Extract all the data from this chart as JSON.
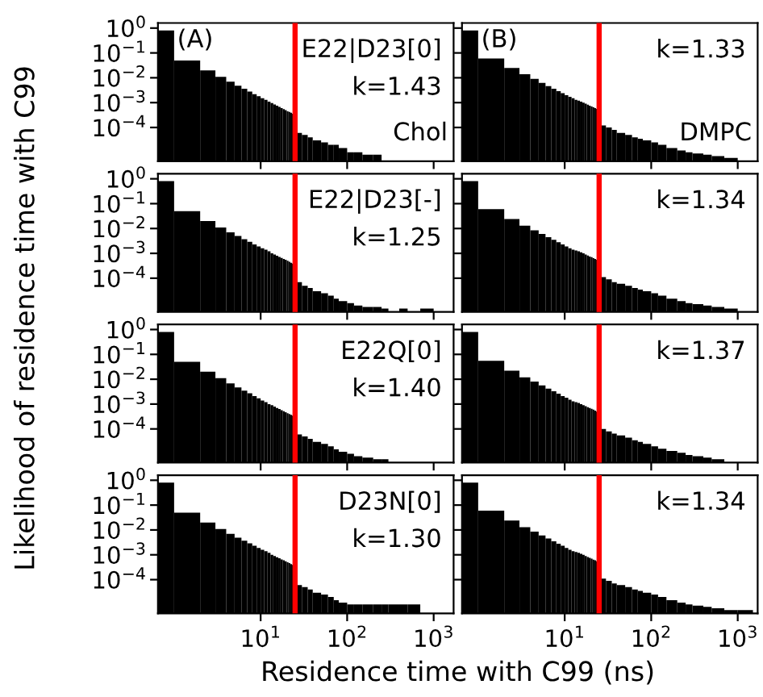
{
  "chart_data": [
    {
      "type": "histogram",
      "title": "(A)",
      "subtitle": "Chol",
      "annotations": [
        "E22|D23[0]",
        "k=1.43"
      ],
      "ylabel": "Likelihood of residence time with C99",
      "color": "#000000",
      "log": "xy",
      "tick_labels": "y",
      "xlim": [
        0.65,
        1700
      ],
      "ylim": [
        4.4e-06,
        1.6
      ],
      "xticks": [
        {
          "value": 10,
          "label": null
        },
        {
          "value": 100,
          "label": null
        },
        {
          "value": 1000,
          "label": null
        }
      ],
      "yticks": [
        {
          "value": 0.0001,
          "label": "10$^{−4}$"
        },
        {
          "value": 0.001,
          "label": "10$^{−3}$"
        },
        {
          "value": 0.01,
          "label": "10$^{−2}$"
        },
        {
          "value": 0.1,
          "label": "10$^{−1}$"
        },
        {
          "value": 1,
          "label": "10$^{0}$"
        }
      ],
      "ref_lines": [
        {
          "axis": "x",
          "value": 25,
          "color": "#ff0000"
        }
      ],
      "bins": [
        0.65,
        1,
        2,
        3,
        4,
        5,
        6,
        7,
        8,
        9,
        10,
        11,
        12,
        13,
        14,
        15,
        16,
        17,
        18,
        19,
        20,
        21,
        22,
        23,
        25,
        30,
        35,
        40,
        50,
        60,
        70,
        80,
        100,
        120,
        150,
        200,
        250
      ],
      "values": [
        0.8,
        0.05,
        0.02,
        0.011,
        0.0069,
        0.0048,
        0.0036,
        0.0028,
        0.0022,
        0.0018,
        0.0015,
        0.0013,
        0.0011,
        0.00096,
        0.00085,
        0.00075,
        0.00067,
        0.0006,
        0.00055,
        0.0005,
        0.00045,
        0.00042,
        0.00039,
        0.00036,
        6e-05,
        5e-05,
        4e-05,
        3e-05,
        2.5e-05,
        2e-05,
        2e-05,
        1.5e-05,
        1e-05,
        1e-05,
        8e-06,
        8e-06
      ]
    },
    {
      "type": "histogram",
      "title": "(B)",
      "subtitle": "DMPC",
      "annotations": [
        "k=1.33"
      ],
      "color": "#000000",
      "log": "xy",
      "tick_labels": false,
      "xlim": [
        0.65,
        1700
      ],
      "ylim": [
        4.4e-06,
        1.6
      ],
      "xticks": [
        {
          "value": 10,
          "label": null
        },
        {
          "value": 100,
          "label": null
        },
        {
          "value": 1000,
          "label": null
        }
      ],
      "yticks": [
        {
          "value": 0.0001,
          "label": null
        },
        {
          "value": 0.001,
          "label": null
        },
        {
          "value": 0.01,
          "label": null
        },
        {
          "value": 0.1,
          "label": null
        },
        {
          "value": 1,
          "label": null
        }
      ],
      "ref_lines": [
        {
          "axis": "x",
          "value": 25,
          "color": "#ff0000"
        }
      ],
      "bins": [
        0.65,
        1,
        2,
        3,
        4,
        5,
        6,
        7,
        8,
        9,
        10,
        11,
        12,
        13,
        14,
        15,
        16,
        17,
        18,
        19,
        20,
        21,
        22,
        23,
        25,
        30,
        35,
        40,
        50,
        60,
        70,
        80,
        100,
        120,
        150,
        200,
        250,
        300,
        400,
        500,
        700,
        1000
      ],
      "values": [
        0.8,
        0.06,
        0.025,
        0.014,
        0.009,
        0.0062,
        0.0046,
        0.0036,
        0.0029,
        0.0024,
        0.002,
        0.0017,
        0.0015,
        0.0013,
        0.0012,
        0.0011,
        0.001,
        0.0009,
        0.00082,
        0.00075,
        0.0007,
        0.00065,
        0.0006,
        0.00056,
        0.00012,
        0.0001,
        8e-05,
        6e-05,
        5e-05,
        4e-05,
        3.5e-05,
        3e-05,
        2.5e-05,
        2e-05,
        1.5e-05,
        1.2e-05,
        1e-05,
        9e-06,
        8e-06,
        7e-06,
        6e-06
      ]
    },
    {
      "type": "histogram",
      "annotations": [
        "E22|D23[-]",
        "k=1.25"
      ],
      "color": "#000000",
      "log": "xy",
      "tick_labels": "y",
      "xlim": [
        0.65,
        1700
      ],
      "ylim": [
        4.4e-06,
        1.6
      ],
      "xticks": [
        {
          "value": 10,
          "label": null
        },
        {
          "value": 100,
          "label": null
        },
        {
          "value": 1000,
          "label": null
        }
      ],
      "yticks": [
        {
          "value": 0.0001,
          "label": "10$^{−4}$"
        },
        {
          "value": 0.001,
          "label": "10$^{−3}$"
        },
        {
          "value": 0.01,
          "label": "10$^{−2}$"
        },
        {
          "value": 0.1,
          "label": "10$^{−1}$"
        },
        {
          "value": 1,
          "label": "10$^{0}$"
        }
      ],
      "ref_lines": [
        {
          "axis": "x",
          "value": 25,
          "color": "#ff0000"
        }
      ],
      "bins": [
        0.65,
        1,
        2,
        3,
        4,
        5,
        6,
        7,
        8,
        9,
        10,
        11,
        12,
        13,
        14,
        15,
        16,
        17,
        18,
        19,
        20,
        21,
        22,
        23,
        25,
        30,
        35,
        40,
        50,
        60,
        70,
        80,
        100,
        120,
        150,
        200,
        250,
        300,
        400,
        500,
        700,
        1000
      ],
      "values": [
        0.8,
        0.05,
        0.02,
        0.011,
        0.007,
        0.005,
        0.0037,
        0.0029,
        0.0023,
        0.0019,
        0.0016,
        0.0014,
        0.0012,
        0.001,
        0.0009,
        0.0008,
        0.00072,
        0.00065,
        0.0006,
        0.00055,
        0.0005,
        0.00046,
        0.00042,
        0.00039,
        7e-05,
        5e-05,
        4e-05,
        3e-05,
        2.5e-05,
        2e-05,
        1.5e-05,
        1.2e-05,
        1e-05,
        8e-06,
        7e-06,
        7e-06,
        6e-06,
        null,
        6e-06,
        null,
        6e-06
      ]
    },
    {
      "type": "histogram",
      "annotations": [
        "k=1.34"
      ],
      "color": "#000000",
      "log": "xy",
      "tick_labels": false,
      "xlim": [
        0.65,
        1700
      ],
      "ylim": [
        4.4e-06,
        1.6
      ],
      "xticks": [
        {
          "value": 10,
          "label": null
        },
        {
          "value": 100,
          "label": null
        },
        {
          "value": 1000,
          "label": null
        }
      ],
      "yticks": [
        {
          "value": 0.0001,
          "label": null
        },
        {
          "value": 0.001,
          "label": null
        },
        {
          "value": 0.01,
          "label": null
        },
        {
          "value": 0.1,
          "label": null
        },
        {
          "value": 1,
          "label": null
        }
      ],
      "ref_lines": [
        {
          "axis": "x",
          "value": 25,
          "color": "#ff0000"
        }
      ],
      "bins": [
        0.65,
        1,
        2,
        3,
        4,
        5,
        6,
        7,
        8,
        9,
        10,
        11,
        12,
        13,
        14,
        15,
        16,
        17,
        18,
        19,
        20,
        21,
        22,
        23,
        25,
        30,
        35,
        40,
        50,
        60,
        70,
        80,
        100,
        120,
        150,
        200,
        250,
        300,
        400,
        500,
        700,
        1000
      ],
      "values": [
        0.8,
        0.06,
        0.024,
        0.013,
        0.0085,
        0.006,
        0.0045,
        0.0035,
        0.0028,
        0.0023,
        0.0019,
        0.0016,
        0.0014,
        0.0013,
        0.0012,
        0.0011,
        0.001,
        0.0009,
        0.00082,
        0.00075,
        0.0007,
        0.00064,
        0.0006,
        0.00055,
        0.00011,
        9e-05,
        7e-05,
        6e-05,
        5e-05,
        4e-05,
        3.5e-05,
        3e-05,
        2.5e-05,
        2e-05,
        1.5e-05,
        1.2e-05,
        1e-05,
        9e-06,
        8e-06,
        7e-06,
        6e-06
      ]
    },
    {
      "type": "histogram",
      "annotations": [
        "E22Q[0]",
        "k=1.40"
      ],
      "color": "#000000",
      "log": "xy",
      "tick_labels": "y",
      "xlim": [
        0.65,
        1700
      ],
      "ylim": [
        4.4e-06,
        1.6
      ],
      "xticks": [
        {
          "value": 10,
          "label": null
        },
        {
          "value": 100,
          "label": null
        },
        {
          "value": 1000,
          "label": null
        }
      ],
      "yticks": [
        {
          "value": 0.0001,
          "label": "10$^{−4}$"
        },
        {
          "value": 0.001,
          "label": "10$^{−3}$"
        },
        {
          "value": 0.01,
          "label": "10$^{−2}$"
        },
        {
          "value": 0.1,
          "label": "10$^{−1}$"
        },
        {
          "value": 1,
          "label": "10$^{0}$"
        }
      ],
      "ref_lines": [
        {
          "axis": "x",
          "value": 25,
          "color": "#ff0000"
        }
      ],
      "bins": [
        0.65,
        1,
        2,
        3,
        4,
        5,
        6,
        7,
        8,
        9,
        10,
        11,
        12,
        13,
        14,
        15,
        16,
        17,
        18,
        19,
        20,
        21,
        22,
        23,
        25,
        30,
        35,
        40,
        50,
        60,
        70,
        80,
        100,
        120,
        150,
        200,
        250,
        300
      ],
      "values": [
        0.8,
        0.05,
        0.02,
        0.011,
        0.0068,
        0.0047,
        0.0035,
        0.0027,
        0.0021,
        0.0017,
        0.0014,
        0.0012,
        0.001,
        0.0009,
        0.0008,
        0.0007,
        0.00063,
        0.00057,
        0.00052,
        0.00047,
        0.00043,
        0.0004,
        0.00037,
        0.00034,
        6e-05,
        5e-05,
        4e-05,
        3e-05,
        2.5e-05,
        2e-05,
        1.5e-05,
        1.2e-05,
        1e-05,
        8e-06,
        7e-06,
        6e-06,
        6e-06
      ]
    },
    {
      "type": "histogram",
      "annotations": [
        "k=1.37"
      ],
      "color": "#000000",
      "log": "xy",
      "tick_labels": false,
      "xlim": [
        0.65,
        1700
      ],
      "ylim": [
        4.4e-06,
        1.6
      ],
      "xticks": [
        {
          "value": 10,
          "label": null
        },
        {
          "value": 100,
          "label": null
        },
        {
          "value": 1000,
          "label": null
        }
      ],
      "yticks": [
        {
          "value": 0.0001,
          "label": null
        },
        {
          "value": 0.001,
          "label": null
        },
        {
          "value": 0.01,
          "label": null
        },
        {
          "value": 0.1,
          "label": null
        },
        {
          "value": 1,
          "label": null
        }
      ],
      "ref_lines": [
        {
          "axis": "x",
          "value": 25,
          "color": "#ff0000"
        }
      ],
      "bins": [
        0.65,
        1,
        2,
        3,
        4,
        5,
        6,
        7,
        8,
        9,
        10,
        11,
        12,
        13,
        14,
        15,
        16,
        17,
        18,
        19,
        20,
        21,
        22,
        23,
        25,
        30,
        35,
        40,
        50,
        60,
        70,
        80,
        100,
        120,
        150,
        200,
        250,
        300,
        400,
        500,
        700
      ],
      "values": [
        0.8,
        0.055,
        0.022,
        0.012,
        0.008,
        0.0056,
        0.0042,
        0.0033,
        0.0026,
        0.0021,
        0.0018,
        0.0015,
        0.0013,
        0.0012,
        0.0011,
        0.001,
        0.0009,
        0.00082,
        0.00075,
        0.0007,
        0.00064,
        0.0006,
        0.00055,
        0.0005,
        0.0001,
        8e-05,
        6.5e-05,
        5.5e-05,
        4.5e-05,
        3.5e-05,
        3e-05,
        2.5e-05,
        2e-05,
        1.6e-05,
        1.3e-05,
        1.1e-05,
        9e-06,
        8e-06,
        7e-06,
        6e-06
      ]
    },
    {
      "type": "histogram",
      "annotations": [
        "D23N[0]",
        "k=1.30"
      ],
      "color": "#000000",
      "log": "xy",
      "xlim": [
        0.65,
        1700
      ],
      "ylim": [
        4.4e-06,
        1.6
      ],
      "xticks": [
        {
          "value": 10,
          "label": "10$^{1}$"
        },
        {
          "value": 100,
          "label": "10$^{2}$"
        },
        {
          "value": 1000,
          "label": "10$^{3}$"
        }
      ],
      "yticks": [
        {
          "value": 0.0001,
          "label": "10$^{−4}$"
        },
        {
          "value": 0.001,
          "label": "10$^{−3}$"
        },
        {
          "value": 0.01,
          "label": "10$^{−2}$"
        },
        {
          "value": 0.1,
          "label": "10$^{−1}$"
        },
        {
          "value": 1,
          "label": "10$^{0}$"
        }
      ],
      "ref_lines": [
        {
          "axis": "x",
          "value": 25,
          "color": "#ff0000"
        }
      ],
      "bins": [
        0.65,
        1,
        2,
        3,
        4,
        5,
        6,
        7,
        8,
        9,
        10,
        11,
        12,
        13,
        14,
        15,
        16,
        17,
        18,
        19,
        20,
        21,
        22,
        23,
        25,
        30,
        35,
        40,
        50,
        60,
        70,
        80,
        100,
        120,
        150,
        200,
        250,
        300,
        400,
        500,
        700
      ],
      "values": [
        0.8,
        0.05,
        0.02,
        0.011,
        0.007,
        0.0049,
        0.0037,
        0.0029,
        0.0023,
        0.0019,
        0.0016,
        0.0014,
        0.0012,
        0.001,
        0.0009,
        0.0008,
        0.00072,
        0.00065,
        0.0006,
        0.00055,
        0.0005,
        0.00046,
        0.00042,
        0.00039,
        6e-05,
        5e-05,
        4e-05,
        3e-05,
        2.5e-05,
        2e-05,
        1.5e-05,
        1.2e-05,
        1e-05,
        1e-05,
        1e-05,
        1e-05,
        1e-05,
        1e-05,
        1e-05,
        1e-05
      ],
      "xlabel": "Residence time with C99 (ns)"
    },
    {
      "type": "histogram",
      "annotations": [
        "k=1.34"
      ],
      "color": "#000000",
      "log": "xy",
      "tick_labels": "x",
      "xlim": [
        0.65,
        1700
      ],
      "ylim": [
        4.4e-06,
        1.6
      ],
      "xticks": [
        {
          "value": 10,
          "label": "10$^{1}$"
        },
        {
          "value": 100,
          "label": "10$^{2}$"
        },
        {
          "value": 1000,
          "label": "10$^{3}$"
        }
      ],
      "yticks": [
        {
          "value": 0.0001,
          "label": null
        },
        {
          "value": 0.001,
          "label": null
        },
        {
          "value": 0.01,
          "label": null
        },
        {
          "value": 0.1,
          "label": null
        },
        {
          "value": 1,
          "label": null
        }
      ],
      "ref_lines": [
        {
          "axis": "x",
          "value": 25,
          "color": "#ff0000"
        }
      ],
      "bins": [
        0.65,
        1,
        2,
        3,
        4,
        5,
        6,
        7,
        8,
        9,
        10,
        11,
        12,
        13,
        14,
        15,
        16,
        17,
        18,
        19,
        20,
        21,
        22,
        23,
        25,
        30,
        35,
        40,
        50,
        60,
        70,
        80,
        100,
        120,
        150,
        200,
        250,
        300,
        400,
        500,
        700,
        1000,
        1500
      ],
      "values": [
        0.8,
        0.06,
        0.024,
        0.013,
        0.0085,
        0.006,
        0.0045,
        0.0035,
        0.0028,
        0.0023,
        0.0019,
        0.0016,
        0.0014,
        0.0013,
        0.0012,
        0.0011,
        0.001,
        0.0009,
        0.00082,
        0.00075,
        0.0007,
        0.00064,
        0.0006,
        0.00055,
        0.00011,
        9e-05,
        7e-05,
        6e-05,
        5e-05,
        4e-05,
        3.5e-05,
        3e-05,
        2.5e-05,
        2e-05,
        1.5e-05,
        1.2e-05,
        1e-05,
        9e-06,
        8e-06,
        7e-06,
        6e-06,
        6e-06
      ]
    }
  ]
}
